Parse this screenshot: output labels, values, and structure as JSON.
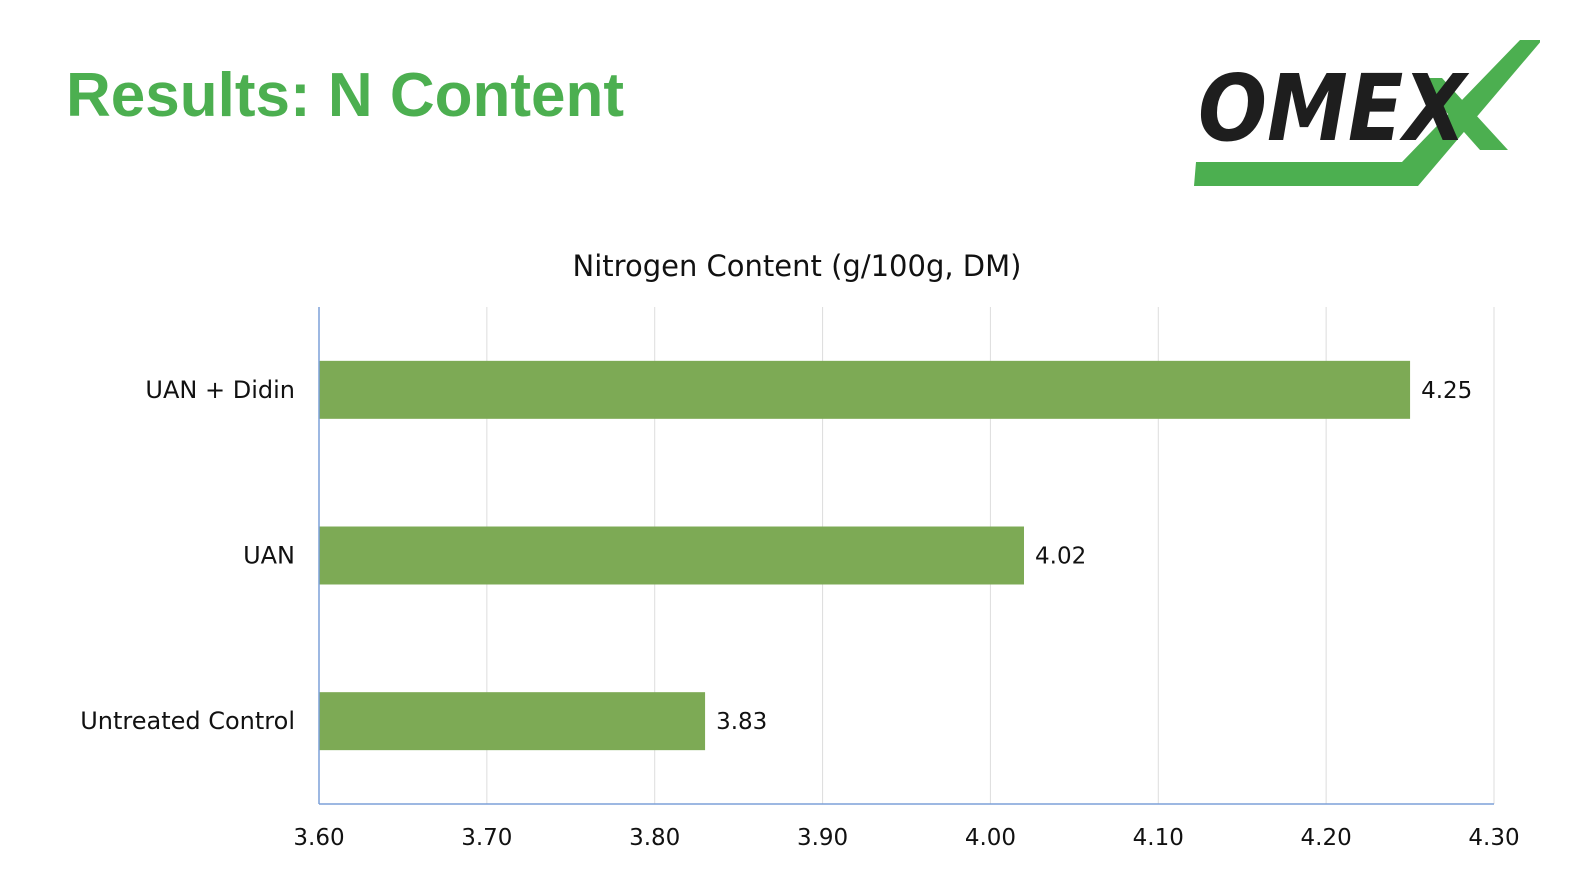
{
  "slide": {
    "title": "Results: N Content",
    "logo_text": "OMEX"
  },
  "colors": {
    "title_green": "#4caf50",
    "bar_green": "#7daa55",
    "logo_green": "#4caf50",
    "logo_black": "#1e1e1e",
    "grid": "#dddddd",
    "axis": "#7da0d8"
  },
  "chart_data": {
    "type": "bar",
    "orientation": "horizontal",
    "title": "Nitrogen Content (g/100g, DM)",
    "categories": [
      "UAN + Didin",
      "UAN",
      "Untreated Control"
    ],
    "values": [
      4.25,
      4.02,
      3.83
    ],
    "data_labels": [
      "4.25",
      "4.02",
      "3.83"
    ],
    "xlim": [
      3.6,
      4.3
    ],
    "x_ticks": [
      3.6,
      3.7,
      3.8,
      3.9,
      4.0,
      4.1,
      4.2,
      4.3
    ],
    "x_tick_labels": [
      "3.60",
      "3.70",
      "3.80",
      "3.90",
      "4.00",
      "4.10",
      "4.20",
      "4.30"
    ],
    "xlabel": "",
    "ylabel": "",
    "grid": true,
    "legend": "none"
  }
}
